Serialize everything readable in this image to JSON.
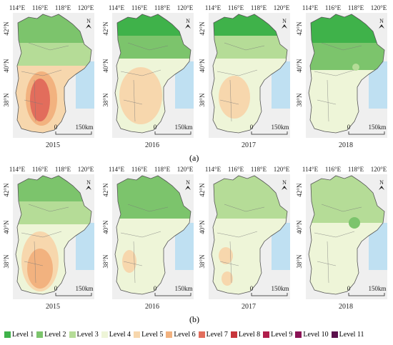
{
  "panel_labels": [
    "(a)",
    "(b)"
  ],
  "years": [
    "2015",
    "2016",
    "2017",
    "2018"
  ],
  "lon_ticks": [
    "114°E",
    "116°E",
    "118°E",
    "120°E"
  ],
  "lat_ticks": [
    "42°N",
    "40°N",
    "38°N"
  ],
  "scale_bar": {
    "start": "0",
    "end": "150km"
  },
  "north_arrow": "N",
  "legend": [
    {
      "label": "Level 1",
      "color": "#3fb24a"
    },
    {
      "label": "Level 2",
      "color": "#7cc46c"
    },
    {
      "label": "Level 3",
      "color": "#b5dc97"
    },
    {
      "label": "Level 4",
      "color": "#eef5d8"
    },
    {
      "label": "Level 5",
      "color": "#f7d7ad"
    },
    {
      "label": "Level 6",
      "color": "#f2b27f"
    },
    {
      "label": "Level 7",
      "color": "#e26d5c"
    },
    {
      "label": "Level 8",
      "color": "#c7353b"
    },
    {
      "label": "Level 9",
      "color": "#b01e4b"
    },
    {
      "label": "Level 10",
      "color": "#8a1255"
    },
    {
      "label": "Level 11",
      "color": "#5a0f4b"
    }
  ],
  "colors": {
    "sea": "#bfe0f2",
    "background": "#efefef",
    "boundary": "#555555"
  }
}
